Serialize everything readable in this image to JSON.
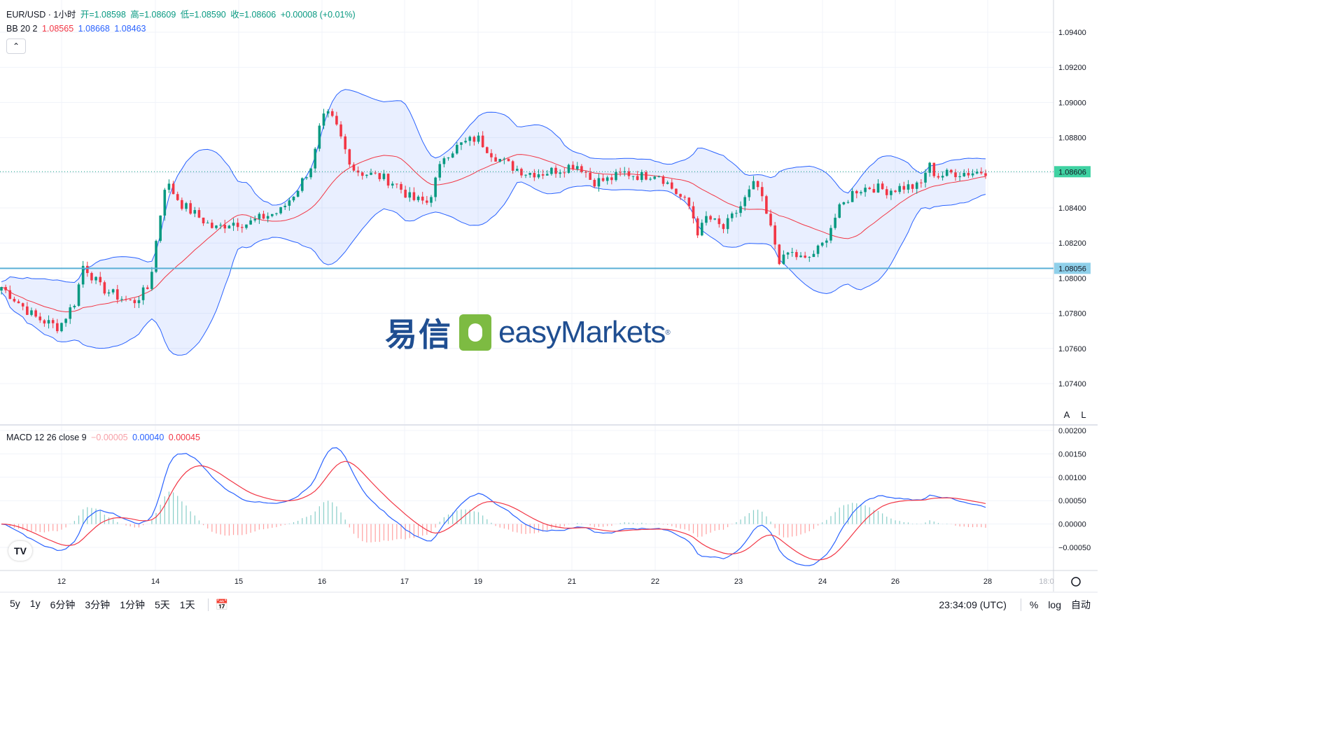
{
  "header": {
    "symbol": "EUR/USD · 1小时",
    "open_label": "开=1.08598",
    "high_label": "高=1.08609",
    "low_label": "低=1.08590",
    "close_label": "收=1.08606",
    "change_label": "+0.00008 (+0.01%)"
  },
  "bb": {
    "label": "BB 20 2",
    "basis": "1.08565",
    "upper": "1.08668",
    "lower": "1.08463"
  },
  "macd": {
    "label": "MACD 12 26 close 9",
    "hist": "−0.00005",
    "macd": "0.00040",
    "signal": "0.00045"
  },
  "watermark": {
    "cn": "易信",
    "en": "easyMarkets",
    "reg": "®"
  },
  "right_buttons": {
    "auto": "A",
    "log": "L"
  },
  "bottom": {
    "timeframes": [
      "5y",
      "1y",
      "6分钟",
      "3分钟",
      "1分钟",
      "5天",
      "1天"
    ],
    "time": "23:34:09 (UTC)",
    "percent": "%",
    "log": "log",
    "auto": "自动"
  },
  "colors": {
    "up": "#089981",
    "down": "#f23645",
    "band": "#2962ff",
    "basis": "#f23645",
    "hline": "#5ab0d6"
  },
  "chart_data": {
    "type": "candlestick",
    "x_ticks": [
      "12",
      "14",
      "15",
      "16",
      "17",
      "19",
      "21",
      "22",
      "23",
      "24",
      "26",
      "28",
      "18:0"
    ],
    "price_ticks": [
      "1.09400",
      "1.09200",
      "1.09000",
      "1.08800",
      "1.08600",
      "1.08400",
      "1.08200",
      "1.08000",
      "1.07800",
      "1.07600",
      "1.07400"
    ],
    "current_price": "1.08606",
    "hline_price": "1.08056",
    "macd_ticks": [
      "0.00200",
      "0.00150",
      "0.00100",
      "0.00050",
      "0.00000",
      "−0.00050"
    ],
    "price_path": [
      [
        0,
        1.0795
      ],
      [
        4,
        1.0778
      ],
      [
        7,
        1.0772
      ],
      [
        9,
        1.0787
      ],
      [
        10,
        1.0808
      ],
      [
        12,
        1.0795
      ],
      [
        14,
        1.079
      ],
      [
        16,
        1.0786
      ],
      [
        18,
        1.0795
      ],
      [
        20,
        1.0855
      ],
      [
        22,
        1.0842
      ],
      [
        24,
        1.0835
      ],
      [
        26,
        1.0828
      ],
      [
        28,
        1.0832
      ],
      [
        30,
        1.0831
      ],
      [
        32,
        1.0835
      ],
      [
        34,
        1.0838
      ],
      [
        36,
        1.085
      ],
      [
        38,
        1.0866
      ],
      [
        39,
        1.089
      ],
      [
        40,
        1.0893
      ],
      [
        41,
        1.0885
      ],
      [
        42,
        1.0872
      ],
      [
        43,
        1.0862
      ],
      [
        44,
        1.086
      ],
      [
        46,
        1.0858
      ],
      [
        48,
        1.0854
      ],
      [
        50,
        1.0845
      ],
      [
        52,
        1.0843
      ],
      [
        54,
        1.087
      ],
      [
        56,
        1.0876
      ],
      [
        58,
        1.088
      ],
      [
        60,
        1.087
      ],
      [
        62,
        1.0864
      ],
      [
        64,
        1.086
      ],
      [
        66,
        1.086
      ],
      [
        68,
        1.0862
      ],
      [
        70,
        1.0865
      ],
      [
        71,
        1.0862
      ],
      [
        72,
        1.0855
      ],
      [
        74,
        1.0856
      ],
      [
        76,
        1.086
      ],
      [
        78,
        1.0858
      ],
      [
        80,
        1.086
      ],
      [
        82,
        1.085
      ],
      [
        84,
        1.084
      ],
      [
        85,
        1.0825
      ],
      [
        86,
        1.0835
      ],
      [
        88,
        1.0828
      ],
      [
        90,
        1.084
      ],
      [
        92,
        1.0855
      ],
      [
        93,
        1.084
      ],
      [
        94,
        1.0825
      ],
      [
        95,
        1.0808
      ],
      [
        96,
        1.0815
      ],
      [
        98,
        1.081
      ],
      [
        100,
        1.0818
      ],
      [
        102,
        1.0838
      ],
      [
        104,
        1.085
      ],
      [
        106,
        1.0852
      ],
      [
        108,
        1.085
      ],
      [
        110,
        1.0852
      ],
      [
        112,
        1.0852
      ],
      [
        113,
        1.0865
      ],
      [
        114,
        1.0858
      ],
      [
        116,
        1.086
      ],
      [
        118,
        1.086
      ],
      [
        120,
        1.0861
      ]
    ]
  }
}
